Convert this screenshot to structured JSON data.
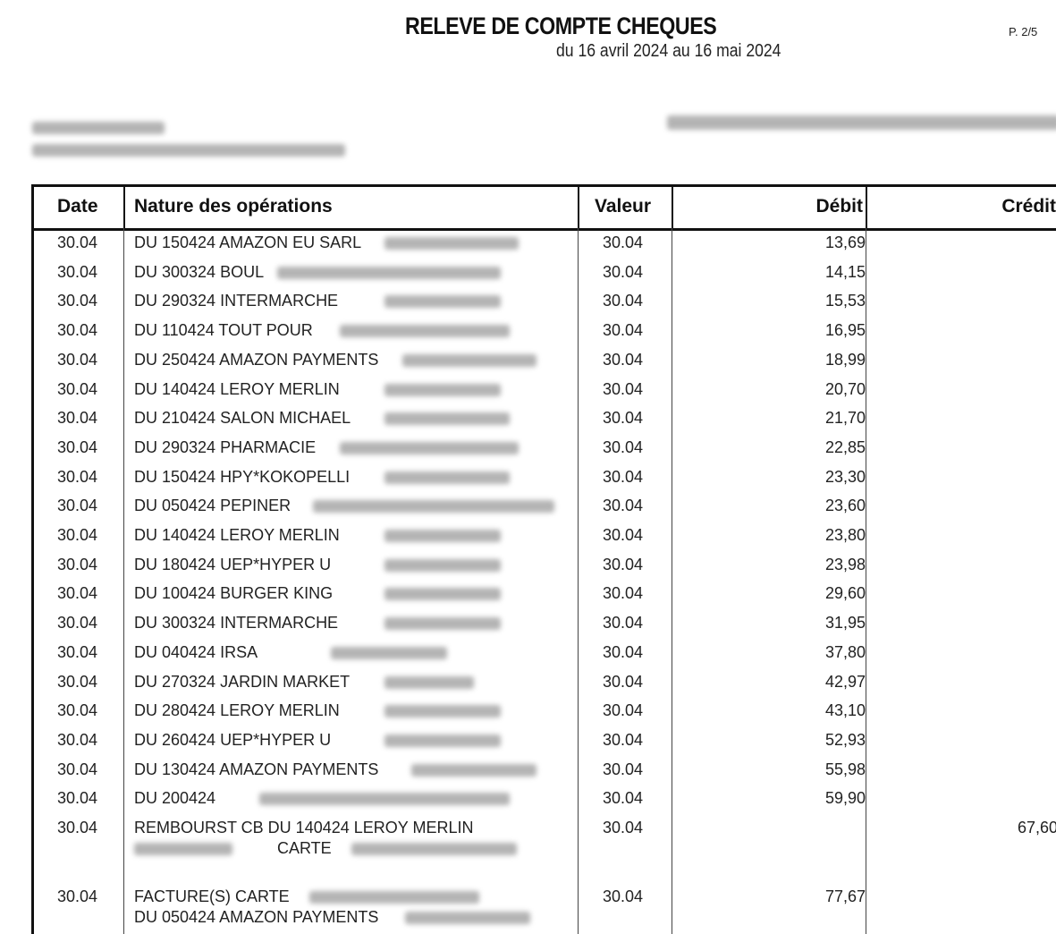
{
  "header": {
    "title": "RELEVE DE COMPTE CHEQUES",
    "period": "du 16 avril 2024 au 16 mai 2024",
    "page": "P. 2/5"
  },
  "table": {
    "columns": [
      "Date",
      "Nature des opérations",
      "Valeur",
      "Débit",
      "Crédit"
    ],
    "rows": [
      {
        "date": "30.04",
        "nature": "DU 150424 AMAZON EU SARL",
        "valeur": "30.04",
        "debit": "13,69",
        "credit": ""
      },
      {
        "date": "30.04",
        "nature": "DU 300324 BOUL",
        "valeur": "30.04",
        "debit": "14,15",
        "credit": ""
      },
      {
        "date": "30.04",
        "nature": "DU 290324 INTERMARCHE",
        "valeur": "30.04",
        "debit": "15,53",
        "credit": ""
      },
      {
        "date": "30.04",
        "nature": "DU 110424 TOUT POUR",
        "valeur": "30.04",
        "debit": "16,95",
        "credit": ""
      },
      {
        "date": "30.04",
        "nature": "DU 250424 AMAZON PAYMENTS",
        "valeur": "30.04",
        "debit": "18,99",
        "credit": ""
      },
      {
        "date": "30.04",
        "nature": "DU 140424 LEROY MERLIN",
        "valeur": "30.04",
        "debit": "20,70",
        "credit": ""
      },
      {
        "date": "30.04",
        "nature": "DU 210424 SALON MICHAEL",
        "valeur": "30.04",
        "debit": "21,70",
        "credit": ""
      },
      {
        "date": "30.04",
        "nature": "DU 290324 PHARMACIE",
        "valeur": "30.04",
        "debit": "22,85",
        "credit": ""
      },
      {
        "date": "30.04",
        "nature": "DU 150424 HPY*KOKOPELLI",
        "valeur": "30.04",
        "debit": "23,30",
        "credit": ""
      },
      {
        "date": "30.04",
        "nature": "DU 050424 PEPINER",
        "valeur": "30.04",
        "debit": "23,60",
        "credit": ""
      },
      {
        "date": "30.04",
        "nature": "DU 140424 LEROY MERLIN",
        "valeur": "30.04",
        "debit": "23,80",
        "credit": ""
      },
      {
        "date": "30.04",
        "nature": "DU 180424 UEP*HYPER U",
        "valeur": "30.04",
        "debit": "23,98",
        "credit": ""
      },
      {
        "date": "30.04",
        "nature": "DU 100424 BURGER KING",
        "valeur": "30.04",
        "debit": "29,60",
        "credit": ""
      },
      {
        "date": "30.04",
        "nature": "DU 300324 INTERMARCHE",
        "valeur": "30.04",
        "debit": "31,95",
        "credit": ""
      },
      {
        "date": "30.04",
        "nature": "DU 040424 IRSA",
        "valeur": "30.04",
        "debit": "37,80",
        "credit": ""
      },
      {
        "date": "30.04",
        "nature": "DU 270324 JARDIN MARKET",
        "valeur": "30.04",
        "debit": "42,97",
        "credit": ""
      },
      {
        "date": "30.04",
        "nature": "DU 280424 LEROY MERLIN",
        "valeur": "30.04",
        "debit": "43,10",
        "credit": ""
      },
      {
        "date": "30.04",
        "nature": "DU 260424 UEP*HYPER U",
        "valeur": "30.04",
        "debit": "52,93",
        "credit": ""
      },
      {
        "date": "30.04",
        "nature": "DU 130424 AMAZON PAYMENTS",
        "valeur": "30.04",
        "debit": "55,98",
        "credit": ""
      },
      {
        "date": "30.04",
        "nature": "DU 200424",
        "valeur": "30.04",
        "debit": "59,90",
        "credit": ""
      },
      {
        "date": "30.04",
        "nature": "REMBOURST CB DU 140424 LEROY MERLIN",
        "nature2": "CARTE",
        "valeur": "30.04",
        "debit": "",
        "credit": "67,60"
      },
      {
        "date": "30.04",
        "nature": "FACTURE(S) CARTE",
        "nature2": "DU 050424 AMAZON PAYMENTS",
        "valeur": "30.04",
        "debit": "77,67",
        "credit": ""
      }
    ]
  }
}
